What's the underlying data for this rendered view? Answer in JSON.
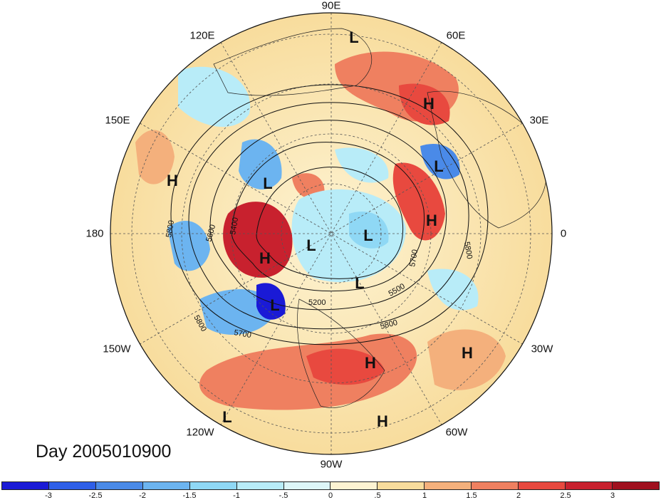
{
  "title": "Day 2005010900",
  "longitude_labels": [
    {
      "text": "90E"
    },
    {
      "text": "60E"
    },
    {
      "text": "30E"
    },
    {
      "text": "0"
    },
    {
      "text": "30W"
    },
    {
      "text": "60W"
    },
    {
      "text": "90W"
    },
    {
      "text": "120W"
    },
    {
      "text": "150W"
    },
    {
      "text": "180"
    },
    {
      "text": "150E"
    },
    {
      "text": "120E"
    }
  ],
  "pressure_centers": [
    {
      "label": "L",
      "name": "low-north-asia"
    },
    {
      "label": "H",
      "name": "high-russia"
    },
    {
      "label": "L",
      "name": "low-caspian"
    },
    {
      "label": "H",
      "name": "high-north-pacific-west"
    },
    {
      "label": "L",
      "name": "low-kamchatka"
    },
    {
      "label": "H",
      "name": "high-alaska"
    },
    {
      "label": "L",
      "name": "low-pole"
    },
    {
      "label": "L",
      "name": "low-barents"
    },
    {
      "label": "H",
      "name": "high-scandinavia"
    },
    {
      "label": "L",
      "name": "low-gulf-of-alaska"
    },
    {
      "label": "L",
      "name": "low-greenland"
    },
    {
      "label": "H",
      "name": "high-gulf-of-mexico"
    },
    {
      "label": "H",
      "name": "high-atlantic"
    },
    {
      "label": "H",
      "name": "high-caribbean"
    },
    {
      "label": "L",
      "name": "low-east-pacific"
    }
  ],
  "contour_labels": [
    "5800",
    "5600",
    "5400",
    "5200",
    "5500",
    "5700",
    "5800",
    "5700",
    "5800",
    "5800"
  ],
  "colorbar": {
    "colors": [
      "#1a1ad6",
      "#2f5fe8",
      "#4a8ae8",
      "#6cb4f0",
      "#8fd8f5",
      "#b8ecf8",
      "#ddf6f8",
      "#fdf3d2",
      "#f8dc9c",
      "#f4b07c",
      "#ef8060",
      "#e8493f",
      "#c8212e",
      "#a0101e"
    ],
    "tick_labels": [
      "-3",
      "-2.5",
      "-2",
      "-1.5",
      "-1",
      "-.5",
      "0",
      ".5",
      "1",
      "1.5",
      "2",
      "2.5",
      "3"
    ]
  }
}
